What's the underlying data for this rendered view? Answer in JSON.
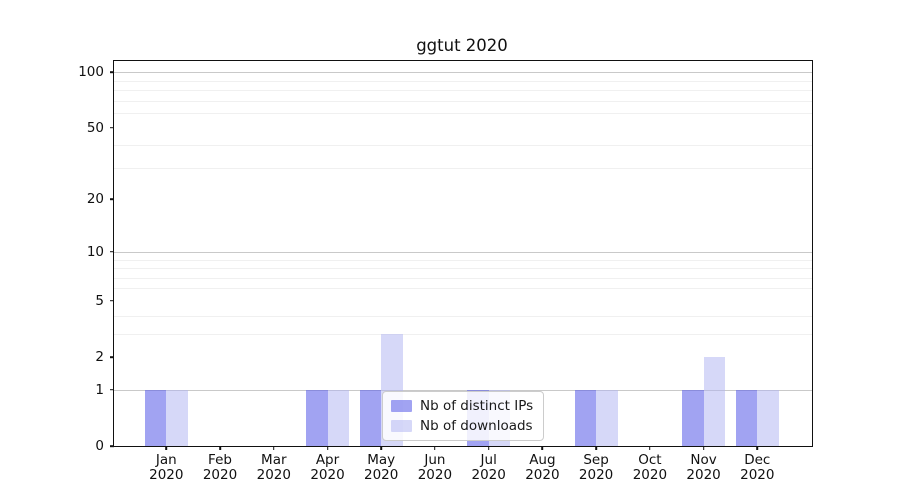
{
  "title": "ggtut 2020",
  "legend": {
    "items": [
      {
        "label": "Nb of distinct IPs",
        "key": "ips"
      },
      {
        "label": "Nb of downloads",
        "key": "downloads"
      }
    ]
  },
  "colors": {
    "ips_fill": "rgba(93,97,232,0.58)",
    "downloads_fill": "rgba(177,181,241,0.52)",
    "spine": "#111111",
    "grid_major": "#c9c9c9",
    "grid_minor": "#f0f0f0"
  },
  "chart_data": {
    "type": "bar",
    "title": "ggtut 2020",
    "xlabel": "",
    "ylabel": "",
    "yscale": "log1p",
    "ylim": [
      0,
      115
    ],
    "grid": true,
    "legend_position": "lower center-right (inside axes, overlapping Jul bars)",
    "categories": [
      "Jan",
      "Feb",
      "Mar",
      "Apr",
      "May",
      "Jun",
      "Jul",
      "Aug",
      "Sep",
      "Oct",
      "Nov",
      "Dec"
    ],
    "category_year": "2020",
    "series": [
      {
        "name": "Nb of distinct IPs",
        "values": [
          1,
          0,
          0,
          1,
          1,
          0,
          1,
          0,
          1,
          0,
          1,
          1
        ]
      },
      {
        "name": "Nb of downloads",
        "values": [
          1,
          0,
          0,
          1,
          3,
          0,
          1,
          0,
          1,
          0,
          2,
          1
        ]
      }
    ],
    "ytick_values": [
      0,
      1,
      2,
      5,
      10,
      20,
      50,
      100
    ],
    "ytick_labels": [
      "0",
      "1",
      "2",
      "5",
      "10",
      "20",
      "50",
      "100"
    ],
    "major_gridline_values": [
      1,
      10,
      100
    ],
    "minor_gridline_values": [
      3,
      4,
      6,
      7,
      8,
      9,
      30,
      40,
      60,
      70,
      80,
      90
    ]
  }
}
